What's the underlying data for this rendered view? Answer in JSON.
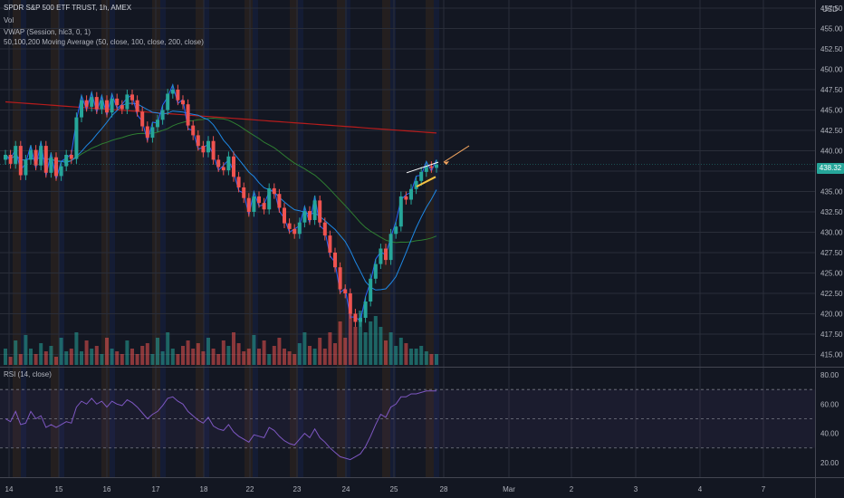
{
  "header": {
    "symbol_title": "SPDR S&P 500 ETF TRUST, 1h, AMEX",
    "volume_label": "Vol",
    "vwap_label": "VWAP (Session, hlc3, 0, 1)",
    "ma_label": "50,100,200 Moving Average (50, close, 100, close, 200, close)",
    "rsi_label": "RSI (14, close)",
    "currency": "USD",
    "last_price": "438.32"
  },
  "colors": {
    "background": "#131722",
    "bull": "#26a69a",
    "bear": "#ef5350",
    "vwap": "#2962ff",
    "ma50": "#1e88e5",
    "ma100": "#2e7d32",
    "ma200": "#b71c1c",
    "rsi_line": "#7e57c2",
    "annotation": "#f6c343"
  },
  "chart_data": {
    "type": "candlestick",
    "title": "SPDR S&P 500 ETF TRUST, 1h, AMEX",
    "ylim": [
      413.5,
      458.5
    ],
    "y_ticks": [
      415.0,
      417.5,
      420.0,
      422.5,
      425.0,
      427.5,
      430.0,
      432.5,
      435.0,
      437.5,
      440.0,
      442.5,
      445.0,
      447.5,
      450.0,
      452.5,
      455.0,
      457.5
    ],
    "y_tick_labels": [
      "415.00",
      "417.50",
      "420.00",
      "422.50",
      "425.00",
      "427.50",
      "430.00",
      "432.50",
      "435.00",
      "437.50",
      "440.00",
      "442.50",
      "445.00",
      "447.50",
      "450.00",
      "452.50",
      "455.00",
      "457.50"
    ],
    "x_tick_labels": [
      "14",
      "15",
      "16",
      "17",
      "18",
      "22",
      "23",
      "24",
      "25",
      "28",
      "Mar",
      "2",
      "3",
      "4",
      "7"
    ],
    "last_close": 438.32,
    "closes": [
      439.5,
      438.4,
      440.6,
      437.0,
      438.9,
      440.1,
      438.2,
      440.6,
      437.3,
      439.2,
      436.9,
      438.1,
      439.5,
      439.0,
      444.1,
      446.2,
      445.4,
      446.6,
      445.1,
      446.2,
      444.7,
      446.4,
      445.6,
      445.1,
      446.9,
      446.2,
      444.8,
      443.0,
      441.6,
      442.9,
      443.8,
      445.0,
      447.0,
      447.5,
      446.2,
      445.7,
      443.1,
      441.9,
      440.6,
      439.8,
      441.2,
      438.9,
      438.0,
      437.6,
      439.3,
      436.8,
      435.5,
      434.2,
      432.5,
      434.4,
      433.6,
      432.8,
      435.4,
      434.7,
      433.0,
      431.1,
      430.4,
      429.8,
      431.2,
      432.6,
      431.5,
      433.9,
      431.2,
      429.6,
      427.5,
      425.7,
      423.0,
      422.5,
      420.0,
      419.0,
      419.5,
      421.5,
      424.3,
      426.1,
      428.0,
      426.6,
      429.8,
      430.7,
      434.4,
      434.0,
      435.3,
      436.3,
      437.4,
      438.1,
      437.9,
      438.3
    ],
    "rsi": [
      50,
      48,
      55,
      46,
      47,
      55,
      50,
      52,
      44,
      46,
      44,
      46,
      48,
      47,
      58,
      62,
      60,
      64,
      60,
      62,
      58,
      62,
      60,
      59,
      63,
      61,
      58,
      54,
      50,
      53,
      55,
      59,
      64,
      65,
      62,
      60,
      55,
      52,
      49,
      47,
      51,
      45,
      43,
      42,
      46,
      41,
      38,
      36,
      34,
      39,
      38,
      37,
      44,
      42,
      38,
      35,
      33,
      32,
      36,
      40,
      37,
      43,
      37,
      34,
      30,
      27,
      24,
      23,
      22,
      24,
      26,
      31,
      38,
      46,
      53,
      51,
      58,
      60,
      65,
      65,
      67,
      67,
      68,
      69,
      69,
      69
    ],
    "volumes": [
      0.3,
      0.15,
      0.45,
      0.2,
      0.55,
      0.3,
      0.2,
      0.4,
      0.25,
      0.35,
      0.15,
      0.5,
      0.25,
      0.3,
      0.6,
      0.25,
      0.45,
      0.3,
      0.35,
      0.2,
      0.5,
      0.3,
      0.25,
      0.2,
      0.45,
      0.3,
      0.2,
      0.35,
      0.4,
      0.2,
      0.5,
      0.25,
      0.6,
      0.3,
      0.2,
      0.35,
      0.45,
      0.3,
      0.4,
      0.25,
      0.5,
      0.3,
      0.2,
      0.45,
      0.35,
      0.6,
      0.4,
      0.25,
      0.3,
      0.55,
      0.3,
      0.45,
      0.2,
      0.35,
      0.5,
      0.3,
      0.25,
      0.2,
      0.4,
      0.6,
      0.35,
      0.3,
      0.5,
      0.3,
      0.6,
      0.4,
      0.8,
      0.5,
      0.95,
      0.7,
      1.0,
      0.6,
      0.8,
      0.9,
      0.7,
      0.45,
      0.6,
      0.35,
      0.5,
      0.4,
      0.3,
      0.3,
      0.35,
      0.25,
      0.2,
      0.2
    ],
    "rsi_ylim": [
      10,
      85
    ],
    "rsi_ticks": [
      20.0,
      40.0,
      60.0,
      80.0
    ],
    "rsi_tick_labels": [
      "20.00",
      "40.00",
      "60.00",
      "80.00"
    ],
    "rsi_levels": [
      70,
      50,
      30
    ]
  }
}
